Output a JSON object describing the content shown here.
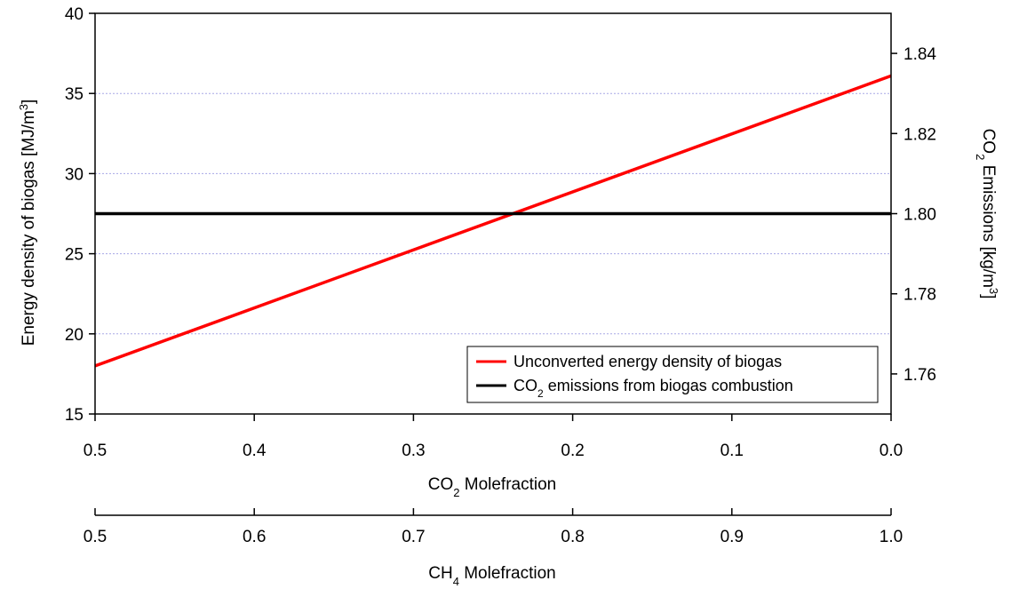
{
  "chart_data": {
    "type": "line",
    "grid": "horizontal",
    "legend_position": "bottom-right",
    "axes": {
      "y_left": {
        "label_text": "Energy density of biogas  [MJ/m",
        "label_sup": "3",
        "label_end": "]",
        "range": [
          15,
          40
        ],
        "ticks": [
          15,
          20,
          25,
          30,
          35,
          40
        ],
        "tick_labels": [
          "15",
          "20",
          "25",
          "30",
          "35",
          "40"
        ]
      },
      "y_right": {
        "label_pre": "CO",
        "label_sub": "2",
        "label_mid": " Emissions  [kg/m",
        "label_sup": "3",
        "label_end": "]",
        "range": [
          1.75,
          1.85
        ],
        "ticks": [
          1.76,
          1.78,
          1.8,
          1.82,
          1.84
        ],
        "tick_labels": [
          "1.76",
          "1.78",
          "1.80",
          "1.82",
          "1.84"
        ]
      },
      "x_co2": {
        "label_pre": "CO",
        "label_sub": "2",
        "label_post": " Molefraction",
        "range": [
          0.5,
          0.0
        ],
        "ticks": [
          0.5,
          0.4,
          0.3,
          0.2,
          0.1,
          0.0
        ],
        "tick_labels": [
          "0.5",
          "0.4",
          "0.3",
          "0.2",
          "0.1",
          "0.0"
        ]
      },
      "x_ch4": {
        "label_pre": "CH",
        "label_sub": "4",
        "label_post": " Molefraction",
        "range": [
          0.5,
          1.0
        ],
        "ticks": [
          0.5,
          0.6,
          0.7,
          0.8,
          0.9,
          1.0
        ],
        "tick_labels": [
          "0.5",
          "0.6",
          "0.7",
          "0.8",
          "0.9",
          "1.0"
        ]
      }
    },
    "series": [
      {
        "legend_text": "Unconverted energy density of biogas",
        "axis": "y_left",
        "color": "#ff0000",
        "points": [
          [
            0.5,
            18.0
          ],
          [
            0.0,
            36.1
          ]
        ]
      },
      {
        "legend_pre": "CO",
        "legend_sub": "2",
        "legend_post": " emissions from biogas combustion",
        "axis": "y_right",
        "color": "#000000",
        "points": [
          [
            0.5,
            1.8
          ],
          [
            0.0,
            1.8
          ]
        ]
      }
    ]
  }
}
